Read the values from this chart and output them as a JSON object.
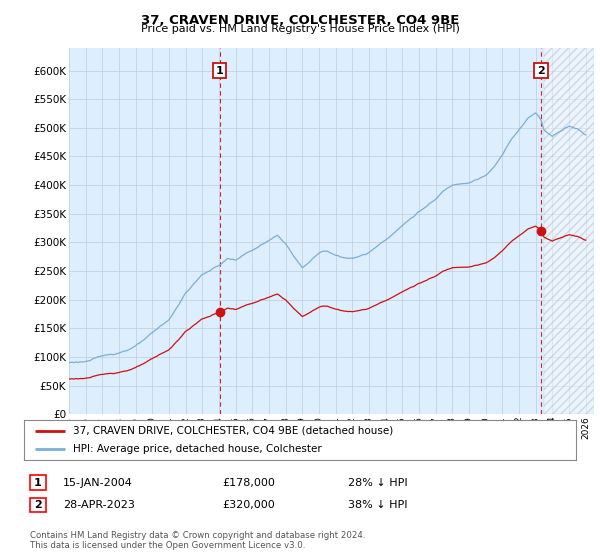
{
  "title": "37, CRAVEN DRIVE, COLCHESTER, CO4 9BE",
  "subtitle": "Price paid vs. HM Land Registry's House Price Index (HPI)",
  "ylim": [
    0,
    620000
  ],
  "yticks": [
    0,
    50000,
    100000,
    150000,
    200000,
    250000,
    300000,
    350000,
    400000,
    450000,
    500000,
    550000,
    600000
  ],
  "hpi_color": "#7bafd4",
  "price_color": "#cc1111",
  "chart_bg": "#ddeeff",
  "sale1_year": 2004.04,
  "sale1_price": 178000,
  "sale1_label": "1",
  "sale2_year": 2023.32,
  "sale2_price": 320000,
  "sale2_label": "2",
  "legend_line1": "37, CRAVEN DRIVE, COLCHESTER, CO4 9BE (detached house)",
  "legend_line2": "HPI: Average price, detached house, Colchester",
  "table_row1_num": "1",
  "table_row1_date": "15-JAN-2004",
  "table_row1_price": "£178,000",
  "table_row1_hpi": "28% ↓ HPI",
  "table_row2_num": "2",
  "table_row2_date": "28-APR-2023",
  "table_row2_price": "£320,000",
  "table_row2_hpi": "38% ↓ HPI",
  "footnote": "Contains HM Land Registry data © Crown copyright and database right 2024.\nThis data is licensed under the Open Government Licence v3.0.",
  "background_color": "#ffffff",
  "grid_color": "#c0ccd8"
}
